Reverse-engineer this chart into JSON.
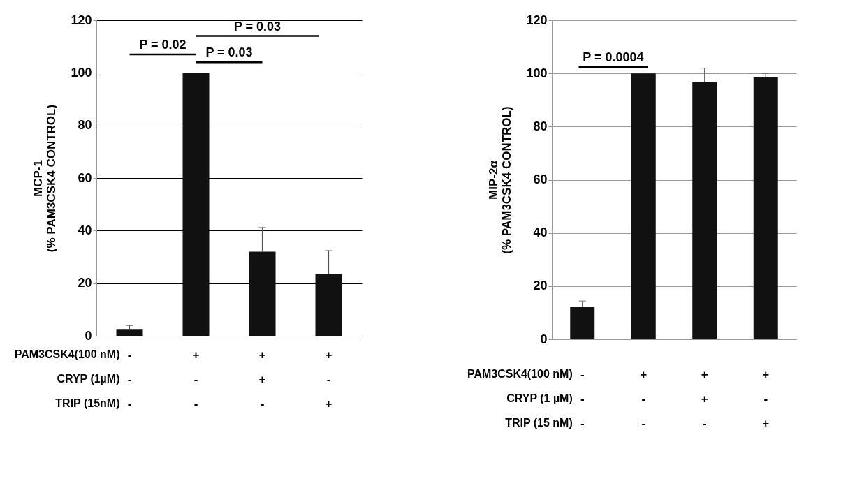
{
  "chart_data": [
    {
      "type": "bar",
      "ylabel": "MCP-1\n(% PAM3CSK4 CONTROL)",
      "categories": [
        "-\n-\n-",
        "+\n-\n-",
        "+\n+\n-",
        "+\n-\n+"
      ],
      "values": [
        2.6,
        100,
        32,
        23.5
      ],
      "color": "#111111",
      "errors": [
        [
          2.6,
          3.9
        ],
        null,
        [
          32,
          41.2
        ],
        [
          23.5,
          32.4
        ]
      ],
      "ylim": [
        0,
        120
      ],
      "yticks": [
        0,
        20,
        40,
        60,
        80,
        100,
        120
      ],
      "grid": "y",
      "annotations": [
        "P = 0.02",
        "P = 0.03",
        "P = 0.03",
        "PAM3CSK4(100 nM)",
        "CRYP (1µM)",
        "TRIP (15nM)"
      ]
    },
    {
      "type": "bar",
      "ylabel": "MIP-2α\n(% PAM3CSK4 CONTROL)",
      "categories": [
        "-\n-\n-",
        "+\n-\n-",
        "+\n+\n-",
        "+\n-\n+"
      ],
      "values": [
        12.1,
        100,
        96.7,
        98.5
      ],
      "color": "#111111",
      "errors": [
        [
          12.1,
          14.4
        ],
        null,
        [
          96.7,
          102
        ],
        [
          98.5,
          100
        ]
      ],
      "ylim": [
        0,
        120
      ],
      "yticks": [
        0,
        20,
        40,
        60,
        80,
        100,
        120
      ],
      "grid": "y",
      "annotations": [
        "P = 0.0004",
        "PAM3CSK4(100 nM)",
        "CRYP (1 µM)",
        "TRIP (15 nM)"
      ]
    }
  ]
}
